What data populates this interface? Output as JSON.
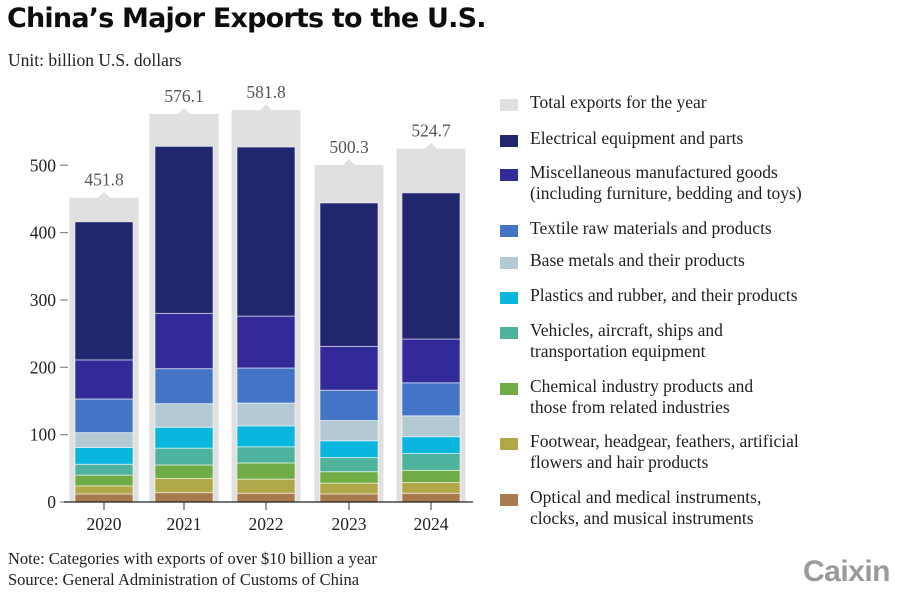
{
  "header": {
    "title": "China’s Major Exports to the U.S.",
    "subtitle": "Unit: billion U.S. dollars"
  },
  "footer": {
    "note": "Note: Categories with exports of over $10 billion a year",
    "source": "Source: General Administration of Customs of China",
    "logo": "Caixin"
  },
  "chart_data": {
    "type": "bar",
    "stacked": true,
    "title": "China’s Major Exports to the U.S.",
    "subtitle": "Unit: billion U.S. dollars",
    "xlabel": "",
    "ylabel": "",
    "ylim": [
      0,
      600
    ],
    "yticks": [
      0,
      100,
      200,
      300,
      400,
      500
    ],
    "grid": false,
    "legend_position": "right",
    "categories": [
      "2020",
      "2021",
      "2022",
      "2023",
      "2024"
    ],
    "totals": {
      "name": "Total exports for the year",
      "color": "#e0e0e0",
      "values": [
        451.8,
        576.1,
        581.8,
        500.3,
        524.7
      ],
      "labels": [
        "451.8",
        "576.1",
        "581.8",
        "500.3",
        "524.7"
      ]
    },
    "series": [
      {
        "name": "Optical and medical instruments,\nclocks, and musical instruments",
        "color": "#a87b4f",
        "values": [
          12,
          14,
          13,
          12,
          13
        ]
      },
      {
        "name": "Footwear, headgear, feathers, artificial\nflowers and hair products",
        "color": "#b0a847",
        "values": [
          12,
          21,
          21,
          16,
          16
        ]
      },
      {
        "name": "Chemical industry products and\nthose from related industries",
        "color": "#6fac45",
        "values": [
          16,
          20,
          24,
          17,
          18
        ]
      },
      {
        "name": "Vehicles, aircraft, ships and\ntransportation equipment",
        "color": "#4db39c",
        "values": [
          16,
          25,
          24,
          21,
          25
        ]
      },
      {
        "name": "Plastics and rubber, and their products",
        "color": "#08b6de",
        "values": [
          25,
          31,
          31,
          25,
          25
        ]
      },
      {
        "name": "Base metals and their products",
        "color": "#b3c9d4",
        "values": [
          22,
          35,
          34,
          30,
          31
        ]
      },
      {
        "name": "Textile raw materials and products",
        "color": "#4374c6",
        "values": [
          50,
          52,
          52,
          45,
          49
        ]
      },
      {
        "name": "Miscellaneous manufactured goods\n(including furniture, bedding and toys)",
        "color": "#312a98",
        "values": [
          58,
          82,
          77,
          65,
          65
        ]
      },
      {
        "name": "Electrical equipment and parts",
        "color": "#20276e",
        "values": [
          205,
          248,
          251,
          213,
          217
        ]
      }
    ],
    "legend_order": [
      "Total exports for the year",
      "Electrical equipment and parts",
      "Miscellaneous manufactured goods\n(including furniture, bedding and toys)",
      "Textile raw materials and products",
      "Base metals and their products",
      "Plastics and rubber, and their products",
      "Vehicles, aircraft, ships and\ntransportation equipment",
      "Chemical industry products and\nthose from related industries",
      "Footwear, headgear, feathers, artificial\nflowers and hair products",
      "Optical and medical instruments,\nclocks, and musical instruments"
    ]
  }
}
